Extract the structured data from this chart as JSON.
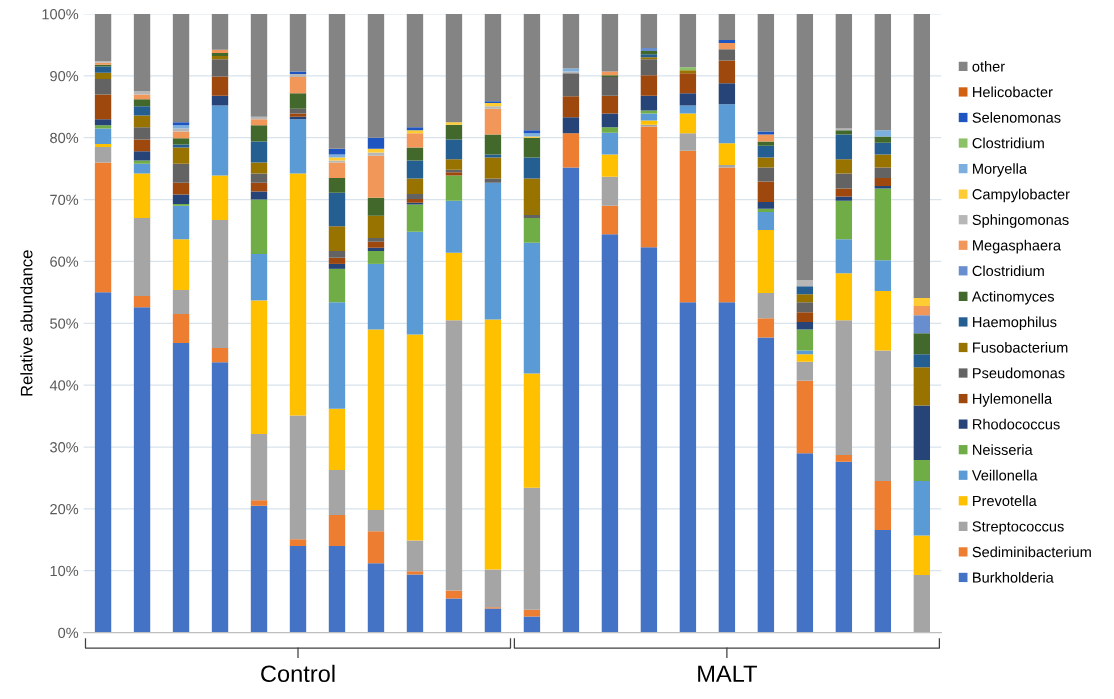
{
  "chart_data": {
    "type": "bar",
    "stacked": true,
    "ylabel": "Relative abundance",
    "categories": [
      null,
      null,
      null,
      null,
      null,
      null,
      null,
      null,
      null,
      null,
      null,
      null,
      null,
      null,
      null,
      null,
      null,
      null,
      null,
      null,
      null,
      null
    ],
    "ylim": [
      0,
      100
    ],
    "yticks": [
      {
        "value": 0,
        "label": "0%"
      },
      {
        "value": 10,
        "label": "10%"
      },
      {
        "value": 20,
        "label": "20%"
      },
      {
        "value": 30,
        "label": "30%"
      },
      {
        "value": 40,
        "label": "40%"
      },
      {
        "value": 50,
        "label": "50%"
      },
      {
        "value": 60,
        "label": "60%"
      },
      {
        "value": 70,
        "label": "70%"
      },
      {
        "value": 80,
        "label": "80%"
      },
      {
        "value": 90,
        "label": "90%"
      },
      {
        "value": 100,
        "label": "100%"
      }
    ],
    "grid": "y",
    "legend": "right",
    "annotations": [
      "Control",
      "MALT"
    ],
    "series": [
      {
        "name": "Burkholderia",
        "color": "#4472c4",
        "values": [
          55,
          52.6,
          46.8,
          43.7,
          20.5,
          14,
          14,
          11.2,
          9.4,
          5.5,
          3.9,
          2.6,
          75.2,
          64.4,
          62.3,
          53.4,
          53.4,
          47.7,
          29,
          27.6,
          16.6,
          0
        ]
      },
      {
        "name": "Sediminibacterium",
        "color": "#ed7d31",
        "values": [
          21,
          1.8,
          4.7,
          2.3,
          0.9,
          1.1,
          5,
          5.2,
          0.5,
          1.3,
          0.2,
          1.1,
          5.5,
          4.6,
          19.5,
          24.5,
          21.8,
          3.1,
          11.7,
          1.1,
          7.9,
          0
        ]
      },
      {
        "name": "Streptococcus",
        "color": "#a5a5a5",
        "values": [
          2.5,
          12.6,
          3.9,
          20.7,
          10.7,
          20,
          7.3,
          3.4,
          5.0,
          43.7,
          6.1,
          19.7,
          0,
          4.7,
          0.3,
          2.8,
          0.4,
          4.1,
          3.1,
          21.8,
          21.1,
          9.3
        ]
      },
      {
        "name": "Prevotella",
        "color": "#ffc000",
        "values": [
          0.5,
          7.2,
          8.2,
          7.2,
          21.6,
          39.1,
          9.9,
          29.2,
          33.3,
          10.9,
          40.4,
          18.5,
          0,
          3.6,
          0.7,
          3.2,
          3.5,
          10.2,
          1.2,
          7.6,
          9.6,
          6.4
        ]
      },
      {
        "name": "Veillonella",
        "color": "#5b9bd5",
        "values": [
          2.5,
          1.6,
          5.4,
          11.3,
          7.5,
          8.8,
          17.2,
          10.6,
          16.6,
          8.4,
          22.1,
          21.1,
          0,
          3.5,
          1.1,
          1.3,
          6.3,
          2.9,
          0.6,
          5.5,
          5.0,
          8.8
        ]
      },
      {
        "name": "Neisseria",
        "color": "#70ad47",
        "values": [
          0.5,
          0.5,
          0.3,
          0,
          8.8,
          0,
          5.4,
          2.1,
          4.4,
          4.1,
          0,
          4.0,
          0,
          0.9,
          0.5,
          0,
          0,
          0.5,
          3.4,
          6.2,
          11.6,
          3.4
        ]
      },
      {
        "name": "Rhodococcus",
        "color": "#264478",
        "values": [
          1,
          1.5,
          1.5,
          1.6,
          1.3,
          0.4,
          0.8,
          0.5,
          0.3,
          0,
          0,
          0,
          2.6,
          2.2,
          2.4,
          2.0,
          3.4,
          1.1,
          1.2,
          0.7,
          0.4,
          8.8
        ]
      },
      {
        "name": "Hylemonella",
        "color": "#9e480e",
        "values": [
          4,
          1.9,
          1.9,
          3.1,
          1.4,
          0.5,
          1.0,
          1.0,
          0.6,
          0.5,
          0,
          0,
          3.4,
          2.9,
          3.3,
          3.2,
          3.7,
          3.3,
          1.6,
          1.3,
          1.3,
          0
        ]
      },
      {
        "name": "Pseudomonas",
        "color": "#636363",
        "values": [
          2.5,
          2.0,
          3.1,
          2.8,
          1.5,
          0.8,
          1.1,
          0.6,
          0.8,
          0.4,
          0.7,
          0.5,
          3.7,
          3.0,
          2.6,
          0,
          1.8,
          2.3,
          1.6,
          2.4,
          1.7,
          0
        ]
      },
      {
        "name": "Fusobacterium",
        "color": "#997300",
        "values": [
          1,
          1.9,
          2.6,
          0.5,
          1.8,
          0,
          4.0,
          3.6,
          2.5,
          1.7,
          3.4,
          5.9,
          0,
          0,
          0.3,
          0.5,
          0,
          1.6,
          1.3,
          2.3,
          2.1,
          6.2
        ]
      },
      {
        "name": "Haemophilus",
        "color": "#255e91",
        "values": [
          1,
          1.5,
          0.5,
          0,
          3.4,
          0,
          5.4,
          0,
          2.9,
          3.2,
          0.5,
          3.4,
          0,
          0,
          0.5,
          0,
          0,
          1.9,
          1.3,
          4.0,
          1.9,
          2.1
        ]
      },
      {
        "name": "Actinomyces",
        "color": "#43682b",
        "values": [
          0.3,
          1.1,
          1.0,
          0.5,
          2.6,
          2.5,
          2.4,
          2.9,
          2.1,
          2.4,
          3.2,
          3.2,
          0,
          0.3,
          0.5,
          0,
          0,
          0.7,
          0,
          0.7,
          1.0,
          3.4
        ]
      },
      {
        "name": "Clostridium",
        "color": "#698ed0",
        "values": [
          0,
          0,
          0,
          0,
          0,
          0,
          0,
          0,
          0,
          0,
          0,
          0,
          0,
          0,
          0.5,
          0,
          0,
          0,
          0,
          0,
          0,
          2.9
        ]
      },
      {
        "name": "Megasphaera",
        "color": "#f1975a",
        "values": [
          0.3,
          0.8,
          1.1,
          0.5,
          1.0,
          2.6,
          2.5,
          6.8,
          2.3,
          0,
          4.2,
          0,
          0,
          0.6,
          0,
          0,
          1.0,
          1.1,
          0,
          0,
          0,
          1.5
        ]
      },
      {
        "name": "Sphingomonas",
        "color": "#b7b7b7",
        "values": [
          0.3,
          0.5,
          0.5,
          0,
          0.4,
          0.5,
          0.3,
          0.5,
          0,
          0,
          0.4,
          0,
          0.3,
          0,
          0,
          0,
          0,
          0,
          1.0,
          0.3,
          0,
          0
        ]
      },
      {
        "name": "Campylobacter",
        "color": "#ffcd33",
        "values": [
          0,
          0,
          0,
          0,
          0,
          0,
          0.5,
          0.6,
          0.5,
          0.4,
          0.5,
          0.2,
          0,
          0,
          0,
          0,
          0,
          0,
          0,
          0,
          0,
          1.3
        ]
      },
      {
        "name": "Moryella",
        "color": "#7cafdd",
        "values": [
          0,
          0,
          0.5,
          0,
          0,
          0,
          0.5,
          0,
          0,
          0,
          0,
          0.5,
          0.5,
          0,
          0,
          0,
          0,
          0,
          0,
          0,
          1.0,
          0
        ]
      },
      {
        "name": "Clostridium",
        "color": "#8cc168",
        "values": [
          0,
          0,
          0,
          0,
          0,
          0,
          0,
          0,
          0,
          0,
          0,
          0,
          0,
          0,
          0,
          0.5,
          0,
          0,
          0,
          0,
          0,
          0
        ]
      },
      {
        "name": "Selenomonas",
        "color": "#1f55c0",
        "values": [
          0,
          0,
          0.5,
          0,
          0,
          0.4,
          0.9,
          1.8,
          0.5,
          0,
          0.3,
          0.5,
          0,
          0,
          0,
          0,
          0.5,
          0.5,
          0,
          0,
          0,
          0
        ]
      },
      {
        "name": "Helicobacter",
        "color": "#d26012",
        "values": [
          0,
          0,
          0,
          0,
          0,
          0,
          0,
          0,
          0,
          0,
          0,
          0,
          0,
          0,
          0,
          0,
          0,
          0,
          0,
          0,
          0,
          0
        ]
      },
      {
        "name": "other",
        "color": "#848484",
        "values": [
          7.6,
          12.5,
          17.5,
          5.8,
          16.6,
          9.3,
          21.8,
          20,
          18.3,
          17.5,
          14.1,
          18.8,
          8.8,
          9.3,
          5.5,
          8.6,
          4.2,
          19,
          43,
          18.5,
          18.8,
          45.9
        ]
      }
    ]
  }
}
